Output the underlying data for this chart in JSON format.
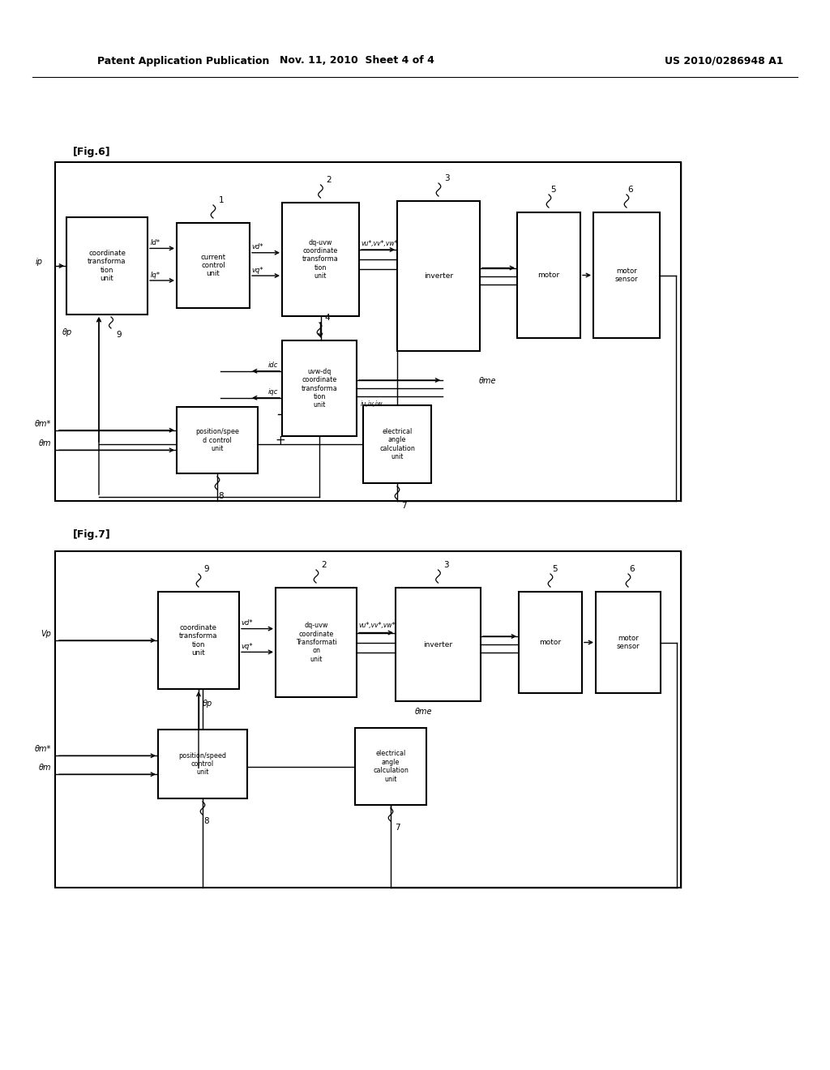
{
  "background_color": "#ffffff",
  "header_left": "Patent Application Publication",
  "header_mid": "Nov. 11, 2010  Sheet 4 of 4",
  "header_right": "US 2010/0286948 A1",
  "fig6_label": "[Fig.6]",
  "fig7_label": "[Fig.7]"
}
